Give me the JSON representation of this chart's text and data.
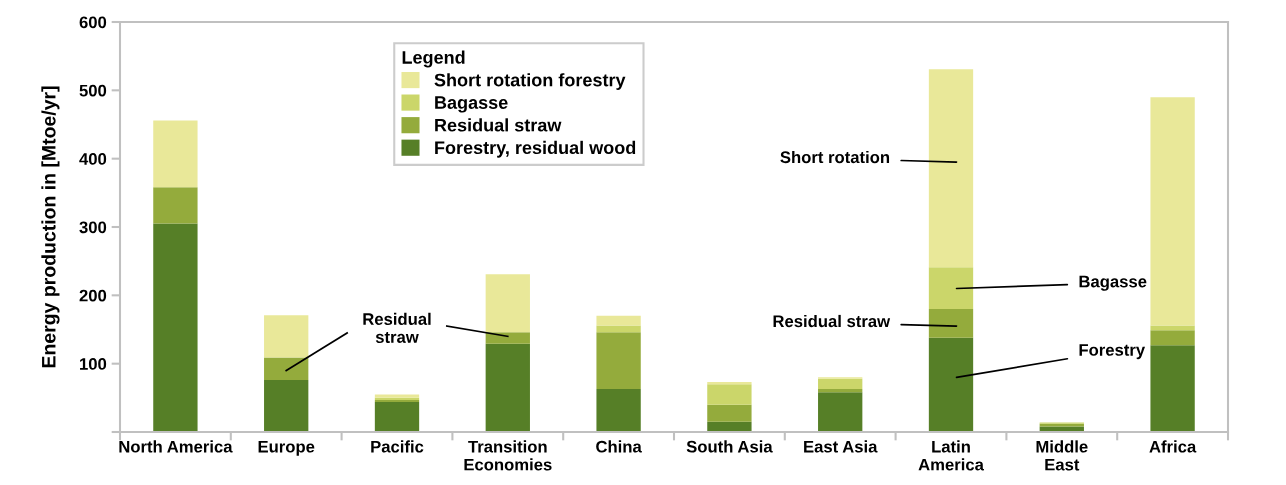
{
  "chart_data": {
    "type": "bar",
    "stacked": true,
    "ylabel": "Energy production in [Mtoe/yr]",
    "categories": [
      "North America",
      "Europe",
      "Pacific",
      "Transition\nEconomies",
      "China",
      "South Asia",
      "East Asia",
      "Latin\nAmerica",
      "Middle\nEast",
      "Africa"
    ],
    "series": [
      {
        "name": "Forestry, residual wood",
        "color": "#567f27",
        "values": [
          305,
          76,
          44,
          129,
          63,
          15,
          58,
          138,
          8,
          127
        ]
      },
      {
        "name": "Residual straw",
        "color": "#94ab3c",
        "values": [
          53,
          33,
          3,
          17,
          83,
          25,
          5,
          42,
          4,
          22
        ]
      },
      {
        "name": "Bagasse",
        "color": "#cbd66a",
        "values": [
          0,
          0,
          3,
          0,
          10,
          30,
          15,
          61,
          2,
          7
        ]
      },
      {
        "name": "Short rotation forestry",
        "color": "#e9e899",
        "values": [
          98,
          62,
          5,
          85,
          14,
          3,
          2,
          290,
          0,
          334
        ]
      }
    ],
    "ylim": [
      0,
      600
    ],
    "yticks": [
      {
        "value": 0,
        "label": null
      },
      100,
      200,
      300,
      400,
      500,
      600
    ],
    "legend": "top",
    "legend_title": "Legend",
    "grid": false,
    "annotations": [
      "Residual\nstraw",
      "Short rotation",
      "Bagasse",
      "Residual straw",
      "Forestry"
    ]
  }
}
